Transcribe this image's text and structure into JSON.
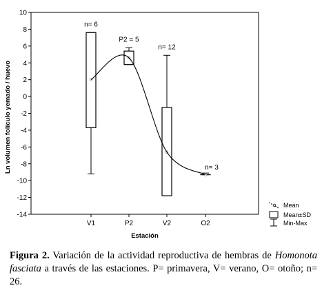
{
  "chart_data": {
    "type": "box",
    "xlabel": "Estación",
    "ylabel": "Ln volumen folículo yemado / huevo",
    "ylim": [
      -14,
      10
    ],
    "yticks": [
      10,
      8,
      6,
      4,
      2,
      0,
      -2,
      -4,
      -6,
      -8,
      -10,
      -12,
      -14
    ],
    "categories": [
      "V1",
      "P2",
      "V2",
      "O2"
    ],
    "mean": [
      2,
      4.6,
      -6.6,
      -9.3
    ],
    "box_low": [
      -3.7,
      3.8,
      -11.8,
      -9.3
    ],
    "box_high": [
      7.6,
      5.4,
      -1.3,
      -9.3
    ],
    "min": [
      -9.2,
      3.8,
      -11.8,
      -9.3
    ],
    "max": [
      7.6,
      5.8,
      4.9,
      -9.1
    ],
    "n_labels": [
      "n= 6",
      "P2 = 5",
      "n= 12",
      "n= 3"
    ],
    "grid": false,
    "legend": {
      "position": "bottom-right",
      "items": [
        "Mean",
        "Mean±SD",
        "Min-Max"
      ]
    }
  },
  "caption": {
    "label": "Figura 2.",
    "text_before": " Variación de la actividad reproductiva de hembras de ",
    "species": "Homonota fasciata",
    "text_after": " a través de las estaciones. P= primavera, V= verano, O= otoño; n= 26."
  }
}
